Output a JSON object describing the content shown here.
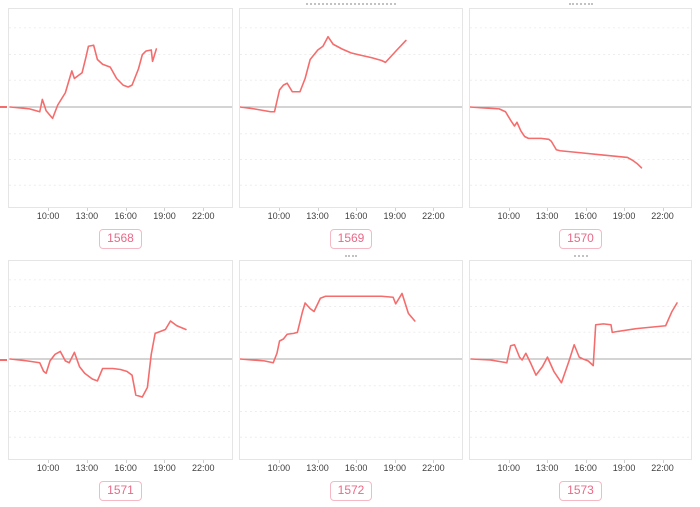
{
  "page": {
    "background": "#ffffff"
  },
  "colors": {
    "line": "#f56c6c",
    "zero_line": "#a8a8a8",
    "panel_border": "#e5e5e5",
    "grid_dotted": "#ededed",
    "tick_text": "#3f3f3f",
    "tag_text": "#e96a87",
    "tag_border": "#f5b9c6",
    "tag_bg": "#ffffff"
  },
  "axis": {
    "tick_labels": [
      "10:00",
      "13:00",
      "16:00",
      "19:00",
      "22:00"
    ],
    "tick_hours": [
      10,
      13,
      16,
      19,
      22
    ],
    "xlim": [
      6.9,
      24.3
    ],
    "ylim": [
      -1,
      1
    ],
    "grid": "horizontal-dotted",
    "zero_line": true
  },
  "chart_data": [
    {
      "type": "line",
      "label": "1568",
      "x_unit": "time-of-day (hours)",
      "y_unit": "change relative to baseline (zero line at mid-plot, normalized -1..1)",
      "clipped_title_w": 0,
      "points": [
        [
          7.0,
          0.0
        ],
        [
          8.5,
          -0.02
        ],
        [
          9.3,
          -0.05
        ],
        [
          9.5,
          0.08
        ],
        [
          9.8,
          -0.04
        ],
        [
          10.3,
          -0.12
        ],
        [
          10.7,
          0.02
        ],
        [
          11.3,
          0.15
        ],
        [
          11.8,
          0.38
        ],
        [
          12.0,
          0.3
        ],
        [
          12.3,
          0.33
        ],
        [
          12.6,
          0.36
        ],
        [
          12.9,
          0.52
        ],
        [
          13.1,
          0.64
        ],
        [
          13.5,
          0.65
        ],
        [
          13.8,
          0.5
        ],
        [
          14.2,
          0.45
        ],
        [
          14.8,
          0.42
        ],
        [
          15.3,
          0.3
        ],
        [
          15.8,
          0.23
        ],
        [
          16.2,
          0.21
        ],
        [
          16.5,
          0.23
        ],
        [
          17.0,
          0.4
        ],
        [
          17.3,
          0.55
        ],
        [
          17.6,
          0.59
        ],
        [
          18.0,
          0.6
        ],
        [
          18.1,
          0.48
        ],
        [
          18.4,
          0.61
        ]
      ]
    },
    {
      "type": "line",
      "label": "1569",
      "x_unit": "time-of-day (hours)",
      "y_unit": "change relative to baseline (zero line at mid-plot, normalized -1..1)",
      "clipped_title_w": 90,
      "points": [
        [
          6.9,
          0.0
        ],
        [
          8.0,
          -0.02
        ],
        [
          9.3,
          -0.05
        ],
        [
          9.6,
          -0.05
        ],
        [
          10.0,
          0.18
        ],
        [
          10.3,
          0.23
        ],
        [
          10.6,
          0.25
        ],
        [
          11.0,
          0.16
        ],
        [
          11.6,
          0.16
        ],
        [
          12.0,
          0.3
        ],
        [
          12.4,
          0.5
        ],
        [
          13.0,
          0.6
        ],
        [
          13.4,
          0.64
        ],
        [
          13.8,
          0.74
        ],
        [
          14.2,
          0.66
        ],
        [
          14.9,
          0.61
        ],
        [
          15.6,
          0.57
        ],
        [
          16.2,
          0.55
        ],
        [
          17.2,
          0.52
        ],
        [
          18.0,
          0.49
        ],
        [
          18.3,
          0.47
        ],
        [
          19.2,
          0.6
        ],
        [
          19.9,
          0.7
        ]
      ]
    },
    {
      "type": "line",
      "label": "1570",
      "x_unit": "time-of-day (hours)",
      "y_unit": "change relative to baseline (zero line at mid-plot, normalized -1..1)",
      "clipped_title_w": 24,
      "points": [
        [
          6.9,
          0.0
        ],
        [
          8.0,
          -0.01
        ],
        [
          9.2,
          -0.02
        ],
        [
          9.7,
          -0.05
        ],
        [
          10.1,
          -0.14
        ],
        [
          10.4,
          -0.2
        ],
        [
          10.6,
          -0.16
        ],
        [
          10.9,
          -0.25
        ],
        [
          11.2,
          -0.31
        ],
        [
          11.5,
          -0.33
        ],
        [
          12.5,
          -0.33
        ],
        [
          13.1,
          -0.34
        ],
        [
          13.3,
          -0.36
        ],
        [
          13.7,
          -0.45
        ],
        [
          14.0,
          -0.46
        ],
        [
          15.5,
          -0.48
        ],
        [
          17.0,
          -0.5
        ],
        [
          18.5,
          -0.52
        ],
        [
          19.3,
          -0.53
        ],
        [
          19.7,
          -0.56
        ],
        [
          20.1,
          -0.6
        ],
        [
          20.4,
          -0.64
        ]
      ]
    },
    {
      "type": "line",
      "label": "1571",
      "x_unit": "time-of-day (hours)",
      "y_unit": "change relative to baseline (zero line at mid-plot, normalized -1..1)",
      "clipped_title_w": 0,
      "points": [
        [
          7.0,
          0.0
        ],
        [
          8.3,
          -0.02
        ],
        [
          9.3,
          -0.04
        ],
        [
          9.6,
          -0.13
        ],
        [
          9.8,
          -0.15
        ],
        [
          10.1,
          -0.02
        ],
        [
          10.5,
          0.05
        ],
        [
          10.9,
          0.08
        ],
        [
          11.3,
          -0.02
        ],
        [
          11.6,
          -0.04
        ],
        [
          12.0,
          0.07
        ],
        [
          12.4,
          -0.08
        ],
        [
          12.8,
          -0.15
        ],
        [
          13.4,
          -0.21
        ],
        [
          13.8,
          -0.23
        ],
        [
          14.2,
          -0.1
        ],
        [
          15.0,
          -0.1
        ],
        [
          15.6,
          -0.11
        ],
        [
          16.1,
          -0.13
        ],
        [
          16.5,
          -0.17
        ],
        [
          16.8,
          -0.38
        ],
        [
          17.3,
          -0.4
        ],
        [
          17.7,
          -0.3
        ],
        [
          18.0,
          0.05
        ],
        [
          18.3,
          0.27
        ],
        [
          18.7,
          0.29
        ],
        [
          19.1,
          0.31
        ],
        [
          19.5,
          0.4
        ],
        [
          20.0,
          0.35
        ],
        [
          20.7,
          0.31
        ]
      ]
    },
    {
      "type": "line",
      "label": "1572",
      "x_unit": "time-of-day (hours)",
      "y_unit": "change relative to baseline (zero line at mid-plot, normalized -1..1)",
      "clipped_title_w": 12,
      "points": [
        [
          6.9,
          0.0
        ],
        [
          8.8,
          -0.02
        ],
        [
          9.5,
          -0.04
        ],
        [
          9.8,
          0.06
        ],
        [
          10.0,
          0.19
        ],
        [
          10.3,
          0.21
        ],
        [
          10.6,
          0.26
        ],
        [
          11.1,
          0.27
        ],
        [
          11.4,
          0.28
        ],
        [
          11.8,
          0.5
        ],
        [
          12.0,
          0.59
        ],
        [
          12.4,
          0.53
        ],
        [
          12.7,
          0.5
        ],
        [
          13.2,
          0.64
        ],
        [
          13.6,
          0.66
        ],
        [
          15.0,
          0.66
        ],
        [
          16.5,
          0.66
        ],
        [
          18.0,
          0.66
        ],
        [
          18.9,
          0.65
        ],
        [
          19.1,
          0.58
        ],
        [
          19.6,
          0.69
        ],
        [
          20.1,
          0.48
        ],
        [
          20.6,
          0.4
        ]
      ]
    },
    {
      "type": "line",
      "label": "1573",
      "x_unit": "time-of-day (hours)",
      "y_unit": "change relative to baseline (zero line at mid-plot, normalized -1..1)",
      "clipped_title_w": 14,
      "points": [
        [
          7.0,
          0.0
        ],
        [
          8.5,
          -0.01
        ],
        [
          9.4,
          -0.03
        ],
        [
          9.8,
          -0.04
        ],
        [
          10.1,
          0.14
        ],
        [
          10.4,
          0.15
        ],
        [
          10.8,
          0.02
        ],
        [
          11.0,
          -0.01
        ],
        [
          11.3,
          0.06
        ],
        [
          11.7,
          -0.05
        ],
        [
          12.1,
          -0.17
        ],
        [
          12.6,
          -0.08
        ],
        [
          13.0,
          0.02
        ],
        [
          13.5,
          -0.13
        ],
        [
          14.1,
          -0.25
        ],
        [
          14.7,
          -0.02
        ],
        [
          15.1,
          0.15
        ],
        [
          15.5,
          0.02
        ],
        [
          15.8,
          0.0
        ],
        [
          16.2,
          -0.02
        ],
        [
          16.6,
          -0.07
        ],
        [
          16.8,
          0.36
        ],
        [
          17.4,
          0.37
        ],
        [
          18.0,
          0.36
        ],
        [
          18.1,
          0.28
        ],
        [
          18.5,
          0.29
        ],
        [
          20.0,
          0.32
        ],
        [
          21.5,
          0.34
        ],
        [
          22.3,
          0.35
        ],
        [
          22.8,
          0.5
        ],
        [
          23.2,
          0.59
        ]
      ]
    }
  ]
}
